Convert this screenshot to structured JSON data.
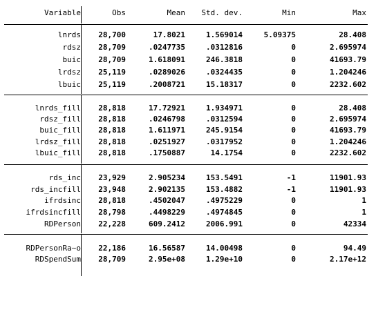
{
  "table": {
    "headers": {
      "variable": "Variable",
      "obs": "Obs",
      "mean": "Mean",
      "sd": "Std. dev.",
      "min": "Min",
      "max": "Max"
    },
    "groups": [
      {
        "rows": [
          {
            "variable": "lnrds",
            "obs": "28,700",
            "mean": "17.8021",
            "sd": "1.569014",
            "min": "5.09375",
            "max": "28.408"
          },
          {
            "variable": "rdsz",
            "obs": "28,709",
            "mean": ".0247735",
            "sd": ".0312816",
            "min": "0",
            "max": "2.695974"
          },
          {
            "variable": "buic",
            "obs": "28,709",
            "mean": "1.618091",
            "sd": "246.3818",
            "min": "0",
            "max": "41693.79"
          },
          {
            "variable": "lrdsz",
            "obs": "25,119",
            "mean": ".0289026",
            "sd": ".0324435",
            "min": "0",
            "max": "1.204246"
          },
          {
            "variable": "lbuic",
            "obs": "25,119",
            "mean": ".2008721",
            "sd": "15.18317",
            "min": "0",
            "max": "2232.602"
          }
        ]
      },
      {
        "rows": [
          {
            "variable": "lnrds_fill",
            "obs": "28,818",
            "mean": "17.72921",
            "sd": "1.934971",
            "min": "0",
            "max": "28.408"
          },
          {
            "variable": "rdsz_fill",
            "obs": "28,818",
            "mean": ".0246798",
            "sd": ".0312594",
            "min": "0",
            "max": "2.695974"
          },
          {
            "variable": "buic_fill",
            "obs": "28,818",
            "mean": "1.611971",
            "sd": "245.9154",
            "min": "0",
            "max": "41693.79"
          },
          {
            "variable": "lrdsz_fill",
            "obs": "28,818",
            "mean": ".0251927",
            "sd": ".0317952",
            "min": "0",
            "max": "1.204246"
          },
          {
            "variable": "lbuic_fill",
            "obs": "28,818",
            "mean": ".1750887",
            "sd": "14.1754",
            "min": "0",
            "max": "2232.602"
          }
        ]
      },
      {
        "rows": [
          {
            "variable": "rds_inc",
            "obs": "23,929",
            "mean": "2.905234",
            "sd": "153.5491",
            "min": "-1",
            "max": "11901.93"
          },
          {
            "variable": "rds_incfill",
            "obs": "23,948",
            "mean": "2.902135",
            "sd": "153.4882",
            "min": "-1",
            "max": "11901.93"
          },
          {
            "variable": "ifrdsinc",
            "obs": "28,818",
            "mean": ".4502047",
            "sd": ".4975229",
            "min": "0",
            "max": "1"
          },
          {
            "variable": "ifrdsincfill",
            "obs": "28,798",
            "mean": ".4498229",
            "sd": ".4974845",
            "min": "0",
            "max": "1"
          },
          {
            "variable": "RDPerson",
            "obs": "22,228",
            "mean": "609.2412",
            "sd": "2006.991",
            "min": "0",
            "max": "42334"
          }
        ]
      },
      {
        "rows": [
          {
            "variable": "RDPersonRa~o",
            "obs": "22,186",
            "mean": "16.56587",
            "sd": "14.00498",
            "min": "0",
            "max": "94.49"
          },
          {
            "variable": "RDSpendSum",
            "obs": "28,709",
            "mean": "2.95e+08",
            "sd": "1.29e+10",
            "min": "0",
            "max": "2.17e+12"
          }
        ]
      }
    ]
  }
}
